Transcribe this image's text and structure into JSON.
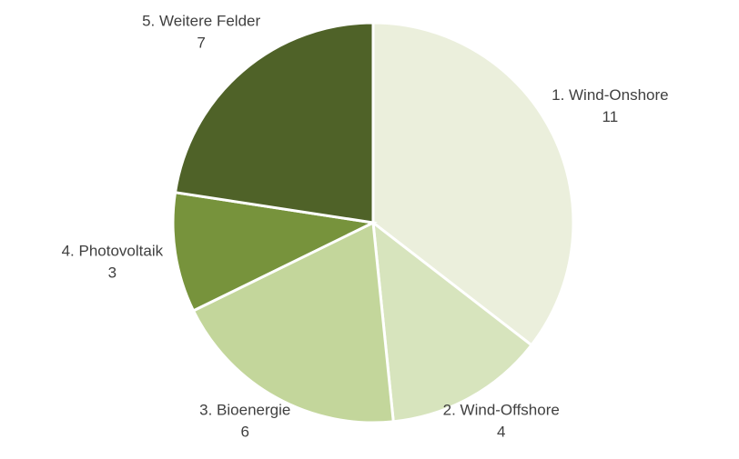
{
  "chart_data": {
    "type": "pie",
    "categories": [
      "1. Wind-Onshore",
      "2. Wind-Offshore",
      "3. Bioenergie",
      "4. Photovoltaik",
      "5. Weitere Felder"
    ],
    "values": [
      11,
      4,
      6,
      3,
      7
    ],
    "colors": [
      "#ebefdc",
      "#d7e4bd",
      "#c3d69b",
      "#77933c",
      "#4f6228"
    ]
  }
}
